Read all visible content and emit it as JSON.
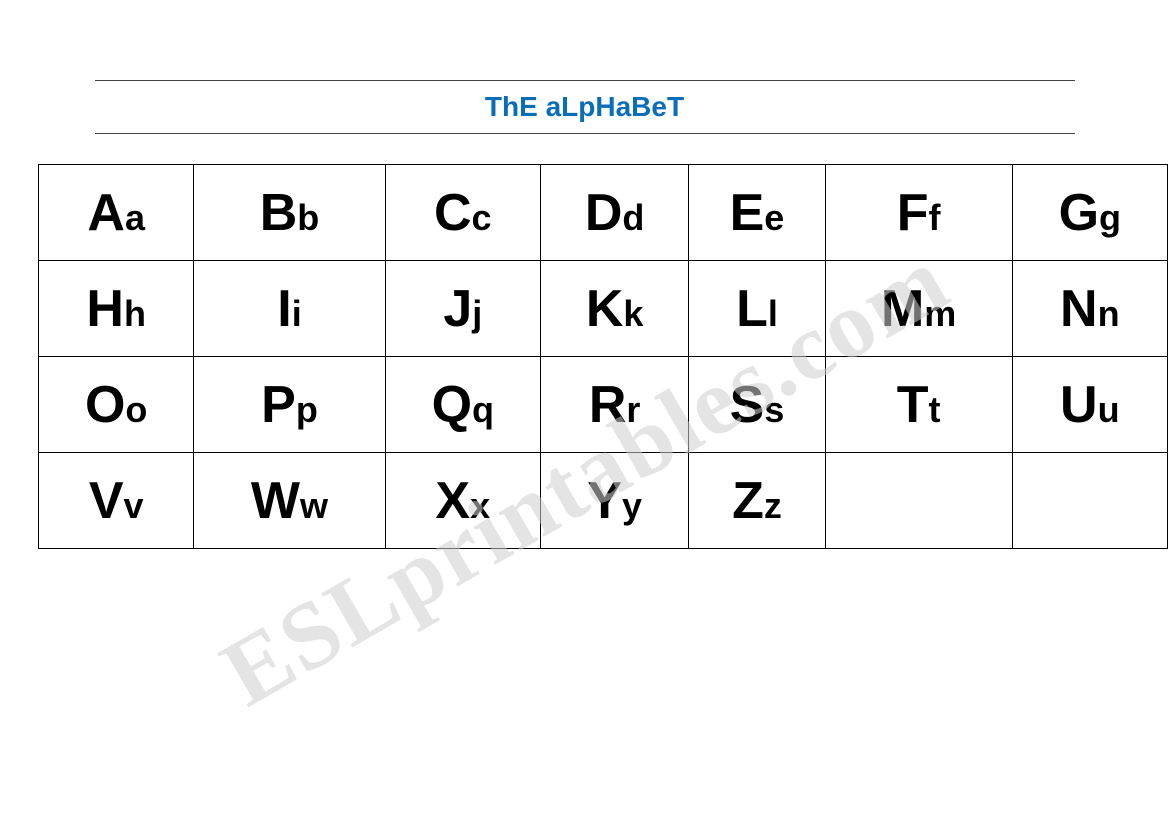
{
  "title": "ThE aLpHaBeT",
  "title_color": "#0a6db7",
  "title_fontsize": 28,
  "rule_color": "#444444",
  "cell_border_color": "#000000",
  "background_color": "#ffffff",
  "letter_color": "#000000",
  "big_fontsize": 52,
  "small_fontsize": 36,
  "columns": 7,
  "rows": [
    [
      {
        "upper": "A",
        "lower": "a"
      },
      {
        "upper": "B",
        "lower": "b"
      },
      {
        "upper": "C",
        "lower": "c"
      },
      {
        "upper": "D",
        "lower": "d"
      },
      {
        "upper": "E",
        "lower": "e"
      },
      {
        "upper": "F",
        "lower": "f"
      },
      {
        "upper": "G",
        "lower": "g"
      }
    ],
    [
      {
        "upper": "H",
        "lower": "h"
      },
      {
        "upper": "I",
        "lower": "i"
      },
      {
        "upper": "J",
        "lower": "j"
      },
      {
        "upper": "K",
        "lower": "k"
      },
      {
        "upper": "L",
        "lower": "l"
      },
      {
        "upper": "M",
        "lower": "m"
      },
      {
        "upper": "N",
        "lower": "n"
      }
    ],
    [
      {
        "upper": "O",
        "lower": "o"
      },
      {
        "upper": "P",
        "lower": "p"
      },
      {
        "upper": "Q",
        "lower": "q"
      },
      {
        "upper": "R",
        "lower": "r"
      },
      {
        "upper": "S",
        "lower": "s"
      },
      {
        "upper": "T",
        "lower": "t"
      },
      {
        "upper": "U",
        "lower": "u"
      }
    ],
    [
      {
        "upper": "V",
        "lower": "v"
      },
      {
        "upper": "W",
        "lower": "w"
      },
      {
        "upper": "X",
        "lower": "x"
      },
      {
        "upper": "Y",
        "lower": "y"
      },
      {
        "upper": "Z",
        "lower": "z"
      },
      null,
      null
    ]
  ],
  "watermark_text": "ESLprintables.com",
  "watermark_color": "#cfcfcf",
  "watermark_fontsize": 95,
  "watermark_angle_deg": -30
}
